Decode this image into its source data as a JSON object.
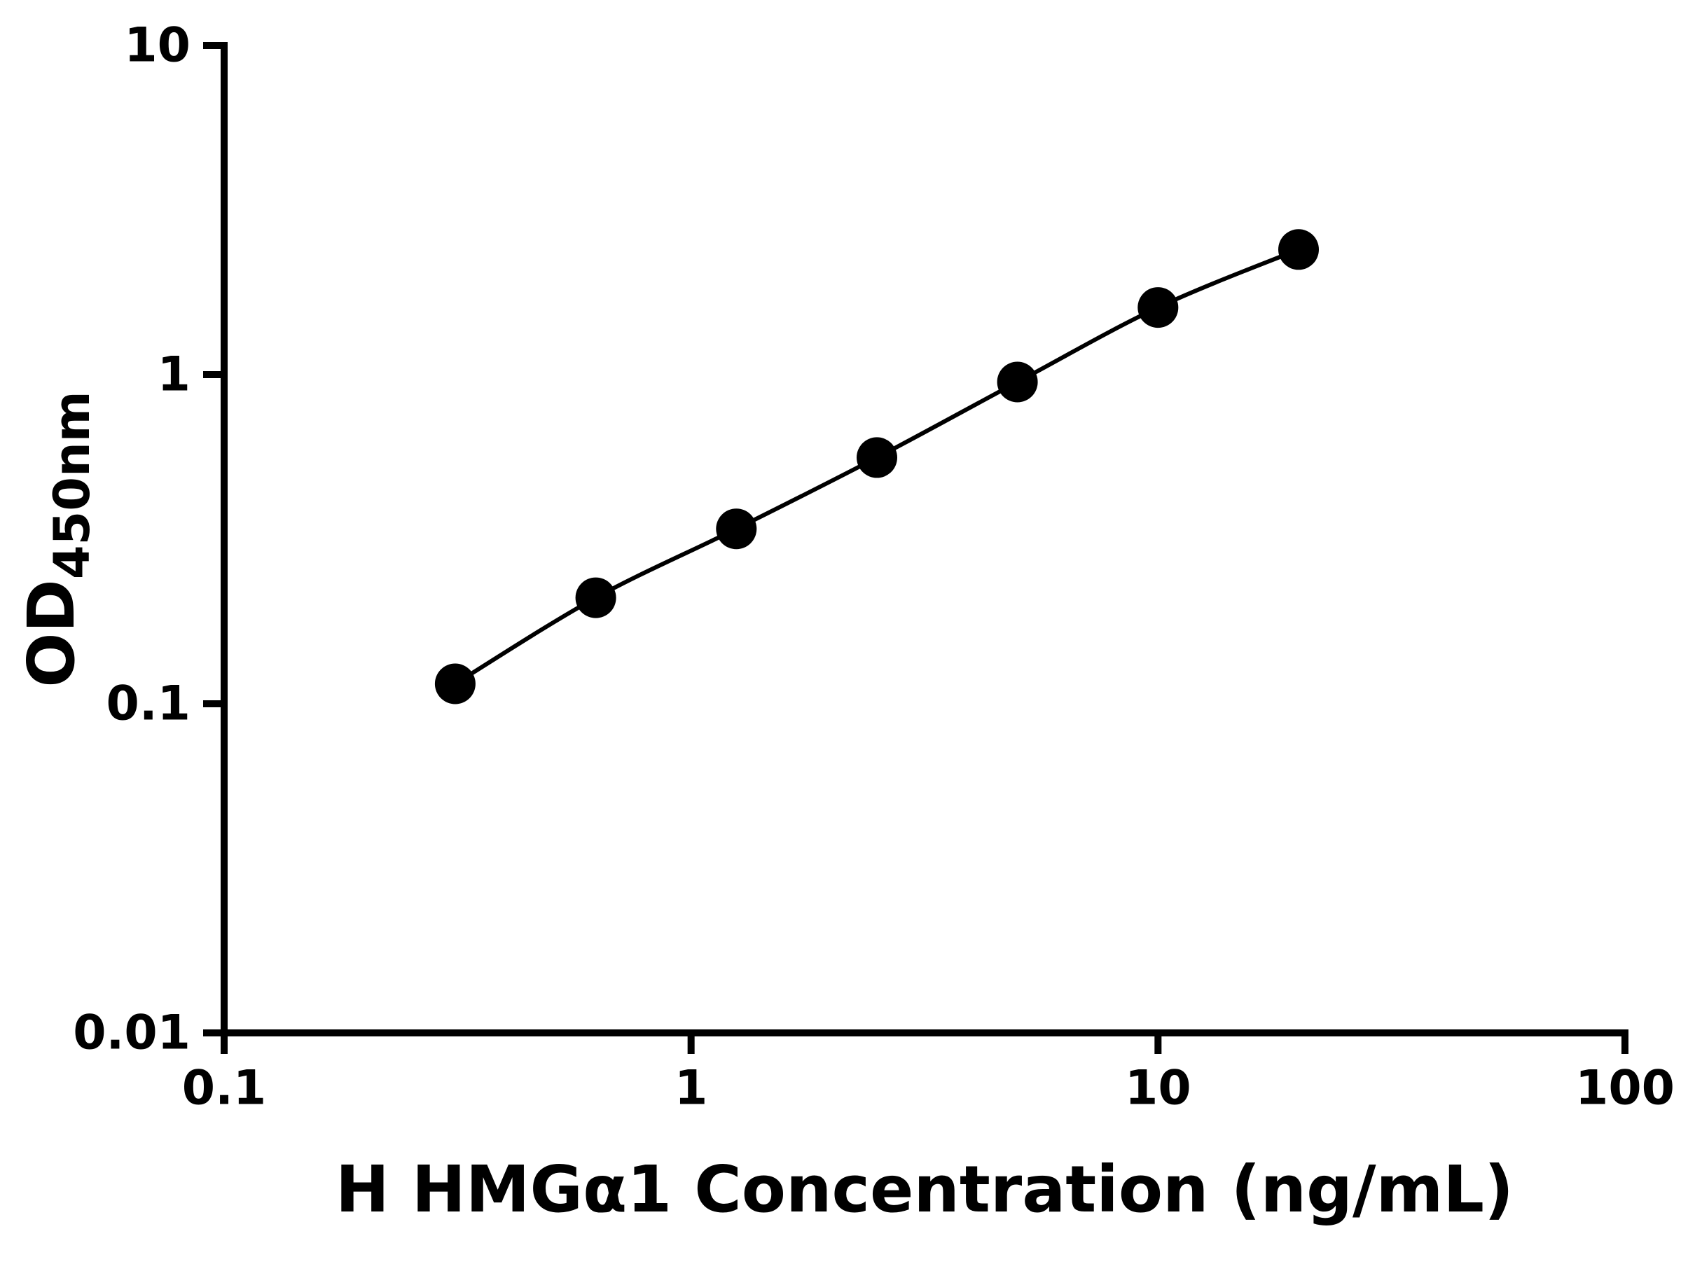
{
  "chart_data": {
    "type": "scatter",
    "title": "",
    "xlabel": "H HMGα1 Concentration (ng/mL)",
    "ylabel_base": "OD",
    "ylabel_sub": "450nm",
    "x": [
      0.3125,
      0.625,
      1.25,
      2.5,
      5,
      10,
      20
    ],
    "y": [
      0.115,
      0.21,
      0.34,
      0.56,
      0.95,
      1.6,
      2.4
    ],
    "xscale": "log",
    "yscale": "log",
    "xlim": [
      0.1,
      100
    ],
    "ylim": [
      0.01,
      10
    ],
    "x_ticks": [
      0.1,
      1,
      10,
      100
    ],
    "x_tick_labels": [
      "0.1",
      "1",
      "10",
      "100"
    ],
    "y_ticks": [
      0.01,
      0.1,
      1,
      10
    ],
    "y_tick_labels": [
      "0.01",
      "0.1",
      "1",
      "10"
    ],
    "grid": false,
    "legend": false,
    "line_color": "#000000",
    "marker_color": "#000000",
    "axis_color": "#000000",
    "background_color": "#ffffff"
  }
}
